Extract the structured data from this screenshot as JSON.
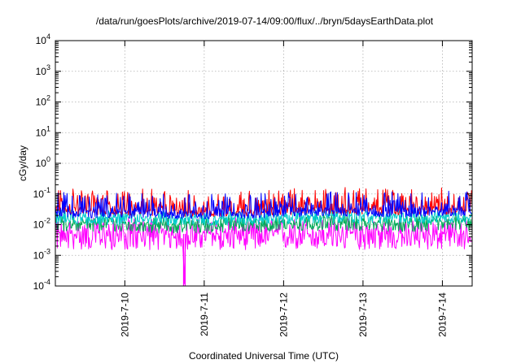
{
  "chart_data": {
    "type": "line",
    "title": "/data/run/goesPlots/archive/2019-07-14/09:00/flux/../bryn/5daysEarthData.plot",
    "xlabel": "Coordinated Universal Time (UTC)",
    "ylabel": "cGy/day",
    "y_scale": "log",
    "ylim": [
      0.0001,
      10000
    ],
    "xlim": [
      "2019-07-09 03:00",
      "2019-07-14 09:00"
    ],
    "x_ticks": [
      "2019-7-10",
      "2019-7-11",
      "2019-7-12",
      "2019-7-13",
      "2019-7-14"
    ],
    "y_ticks": [
      {
        "base": "10",
        "exp": "-4"
      },
      {
        "base": "10",
        "exp": "-3"
      },
      {
        "base": "10",
        "exp": "-2"
      },
      {
        "base": "10",
        "exp": "-1"
      },
      {
        "base": "10",
        "exp": "0"
      },
      {
        "base": "10",
        "exp": "1"
      },
      {
        "base": "10",
        "exp": "2"
      },
      {
        "base": "10",
        "exp": "3"
      },
      {
        "base": "10",
        "exp": "4"
      }
    ],
    "grid": true,
    "legend": "none",
    "series": [
      {
        "color": "#ff0000",
        "x": [
          "2019-07-09 03:00",
          "2019-07-09 12:00",
          "2019-07-10 00:00",
          "2019-07-10 12:00",
          "2019-07-11 00:00",
          "2019-07-11 12:00",
          "2019-07-12 00:00",
          "2019-07-12 12:00",
          "2019-07-13 00:00",
          "2019-07-13 12:00",
          "2019-07-14 00:00",
          "2019-07-14 09:00"
        ],
        "y": [
          0.035,
          0.03,
          0.032,
          0.03,
          0.028,
          0.03,
          0.032,
          0.035,
          0.035,
          0.033,
          0.034,
          0.035
        ]
      },
      {
        "color": "#0000ff",
        "x": [
          "2019-07-09 03:00",
          "2019-07-09 12:00",
          "2019-07-10 00:00",
          "2019-07-10 12:00",
          "2019-07-11 00:00",
          "2019-07-11 12:00",
          "2019-07-12 00:00",
          "2019-07-12 12:00",
          "2019-07-13 00:00",
          "2019-07-13 12:00",
          "2019-07-14 00:00",
          "2019-07-14 09:00"
        ],
        "y": [
          0.028,
          0.025,
          0.026,
          0.025,
          0.024,
          0.025,
          0.027,
          0.03,
          0.029,
          0.028,
          0.03,
          0.03
        ]
      },
      {
        "color": "#00aa55",
        "x": [
          "2019-07-09 03:00",
          "2019-07-09 12:00",
          "2019-07-10 00:00",
          "2019-07-10 12:00",
          "2019-07-11 00:00",
          "2019-07-11 12:00",
          "2019-07-12 00:00",
          "2019-07-12 12:00",
          "2019-07-13 00:00",
          "2019-07-13 12:00",
          "2019-07-14 00:00",
          "2019-07-14 09:00"
        ],
        "y": [
          0.012,
          0.011,
          0.011,
          0.01,
          0.01,
          0.011,
          0.011,
          0.012,
          0.012,
          0.011,
          0.012,
          0.012
        ]
      },
      {
        "color": "#00cccc",
        "x": [
          "2019-07-09 03:00",
          "2019-07-09 12:00",
          "2019-07-10 00:00",
          "2019-07-10 12:00",
          "2019-07-11 00:00",
          "2019-07-11 12:00",
          "2019-07-12 00:00",
          "2019-07-12 12:00",
          "2019-07-13 00:00",
          "2019-07-13 12:00",
          "2019-07-14 00:00",
          "2019-07-14 09:00"
        ],
        "y": [
          0.018,
          0.017,
          0.017,
          0.016,
          0.016,
          0.017,
          0.018,
          0.019,
          0.019,
          0.018,
          0.019,
          0.02
        ]
      },
      {
        "color": "#ff00ff",
        "x": [
          "2019-07-09 03:00",
          "2019-07-09 12:00",
          "2019-07-10 00:00",
          "2019-07-10 12:00",
          "2019-07-10 17:30",
          "2019-07-10 18:00",
          "2019-07-10 18:30",
          "2019-07-11 00:00",
          "2019-07-11 12:00",
          "2019-07-12 00:00",
          "2019-07-12 12:00",
          "2019-07-13 00:00",
          "2019-07-13 12:00",
          "2019-07-14 00:00",
          "2019-07-14 09:00"
        ],
        "y": [
          0.005,
          0.005,
          0.005,
          0.005,
          0.005,
          0.0001,
          0.005,
          0.005,
          0.005,
          0.005,
          0.005,
          0.005,
          0.005,
          0.005,
          0.005
        ]
      }
    ]
  }
}
